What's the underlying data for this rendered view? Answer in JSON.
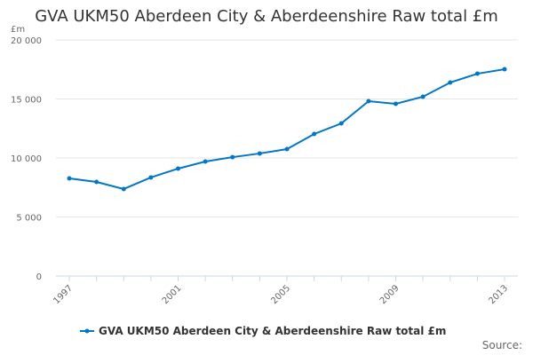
{
  "chart_data": {
    "type": "line",
    "title": "GVA UKM50 Aberdeen City & Aberdeenshire Raw total £m",
    "ylabel": "£m",
    "xlabel": "",
    "ylim": [
      0,
      20000
    ],
    "yticks": [
      0,
      5000,
      10000,
      15000,
      20000
    ],
    "ytick_labels": [
      "0",
      "5 000",
      "10 000",
      "15 000",
      "20 000"
    ],
    "xtick_labels": [
      "1997",
      "2001",
      "2005",
      "2009",
      "2013"
    ],
    "x": [
      1997,
      1998,
      1999,
      2000,
      2001,
      2002,
      2003,
      2004,
      2005,
      2006,
      2007,
      2008,
      2009,
      2010,
      2011,
      2012,
      2013
    ],
    "series": [
      {
        "name": "GVA UKM50 Aberdeen City & Aberdeenshire Raw total £m",
        "color": "#0077c8",
        "values": [
          8270,
          7970,
          7370,
          8350,
          9100,
          9700,
          10070,
          10380,
          10750,
          12030,
          12930,
          14810,
          14590,
          15190,
          16390,
          17140,
          17520
        ]
      }
    ],
    "grid": true,
    "legend_position": "bottom",
    "source_label": "Source:"
  }
}
